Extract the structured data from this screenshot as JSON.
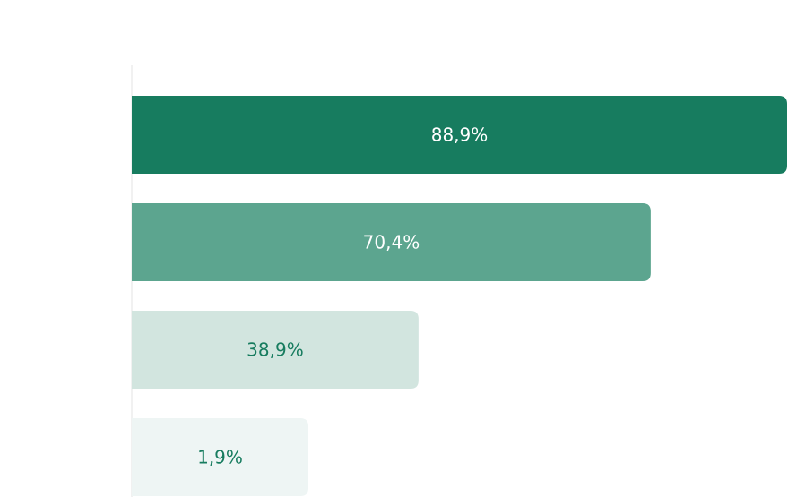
{
  "chart_data": {
    "type": "bar",
    "orientation": "horizontal",
    "categories": [
      "",
      "",
      "",
      ""
    ],
    "values": [
      88.9,
      70.4,
      38.9,
      1.9
    ],
    "value_labels": [
      "88,9%",
      "70,4%",
      "38,9%",
      "1,9%"
    ],
    "colors": [
      "#177c5f",
      "#5ca58f",
      "#d2e5df",
      "#eef5f4"
    ],
    "label_colors": [
      "#ffffff",
      "#ffffff",
      "#177c5f",
      "#177c5f"
    ],
    "axis_color": "#e3e3e3",
    "grid": false,
    "title": "",
    "xlabel": "",
    "ylabel": ""
  }
}
